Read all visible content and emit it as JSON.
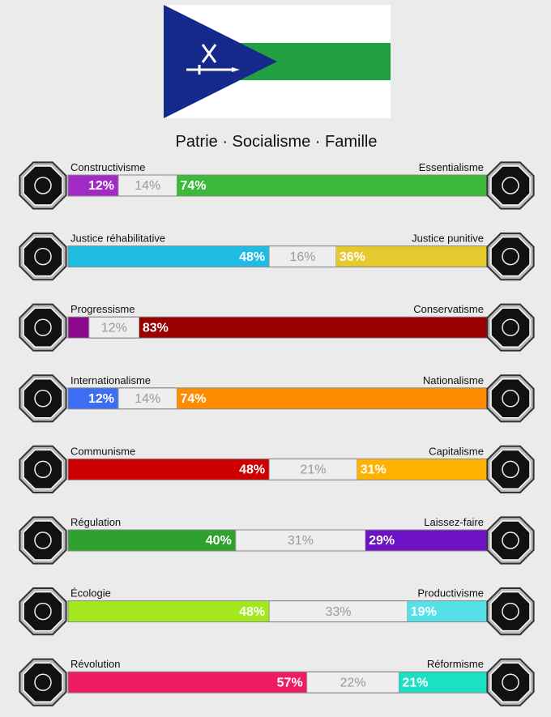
{
  "motto": "Patrie · Socialisme · Famille",
  "axes": [
    {
      "left": "Constructivisme",
      "right": "Essentialisme",
      "values": [
        12,
        14,
        74
      ],
      "value_labels": [
        "12%",
        "14%",
        "74%"
      ],
      "colors": [
        "#a12bc4",
        "#eeeeee",
        "#3cb83a"
      ]
    },
    {
      "left": "Justice réhabilitative",
      "right": "Justice punitive",
      "values": [
        48,
        16,
        36
      ],
      "value_labels": [
        "48%",
        "16%",
        "36%"
      ],
      "colors": [
        "#1fbde3",
        "#eeeeee",
        "#e6c92c"
      ]
    },
    {
      "left": "Progressisme",
      "right": "Conservatisme",
      "values": [
        5,
        12,
        83
      ],
      "value_labels": [
        null,
        "12%",
        "83%"
      ],
      "colors": [
        "#8b0a8b",
        "#eeeeee",
        "#990000"
      ]
    },
    {
      "left": "Internationalisme",
      "right": "Nationalisme",
      "values": [
        12,
        14,
        74
      ],
      "value_labels": [
        "12%",
        "14%",
        "74%"
      ],
      "colors": [
        "#3d6df2",
        "#eeeeee",
        "#ff8c00"
      ]
    },
    {
      "left": "Communisme",
      "right": "Capitalisme",
      "values": [
        48,
        21,
        31
      ],
      "value_labels": [
        "48%",
        "21%",
        "31%"
      ],
      "colors": [
        "#cc0000",
        "#eeeeee",
        "#ffb300"
      ]
    },
    {
      "left": "Régulation",
      "right": "Laissez-faire",
      "values": [
        40,
        31,
        29
      ],
      "value_labels": [
        "40%",
        "31%",
        "29%"
      ],
      "colors": [
        "#2ea12e",
        "#eeeeee",
        "#6d12c4"
      ]
    },
    {
      "left": "Écologie",
      "right": "Productivisme",
      "values": [
        48,
        33,
        19
      ],
      "value_labels": [
        "48%",
        "33%",
        "19%"
      ],
      "colors": [
        "#a2e81c",
        "#eeeeee",
        "#56e0e8"
      ]
    },
    {
      "left": "Révolution",
      "right": "Réformisme",
      "values": [
        57,
        22,
        21
      ],
      "value_labels": [
        "57%",
        "22%",
        "21%"
      ],
      "colors": [
        "#ee1c64",
        "#eeeeee",
        "#1ce0c4"
      ]
    }
  ]
}
